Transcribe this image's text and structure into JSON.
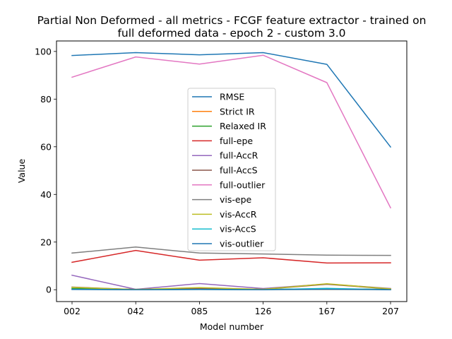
{
  "chart_data": {
    "type": "line",
    "title": "Partial Non Deformed - all metrics - FCGF feature extractor -  trained on full deformed data -  epoch 2 - custom 3.0",
    "title_lines": [
      "Partial Non Deformed - all metrics - FCGF feature extractor -  trained on",
      "full deformed data -  epoch 2 - custom 3.0"
    ],
    "xlabel": "Model number",
    "ylabel": "Value",
    "categories": [
      "002",
      "042",
      "085",
      "126",
      "167",
      "207"
    ],
    "ylim": [
      -4.97,
      104.4
    ],
    "yticks": [
      0,
      20,
      40,
      60,
      80,
      100
    ],
    "grid": false,
    "legend_position": "center",
    "series": [
      {
        "name": "RMSE",
        "color": "#1f77b4",
        "values": [
          98.3,
          99.5,
          98.6,
          99.5,
          94.6,
          59.9
        ]
      },
      {
        "name": "Strict IR",
        "color": "#ff7f0e",
        "values": [
          0.3,
          0.1,
          0.3,
          0.1,
          0.1,
          0.1
        ]
      },
      {
        "name": "Relaxed IR",
        "color": "#2ca02c",
        "values": [
          0.5,
          0.2,
          0.5,
          0.2,
          0.3,
          0.2
        ]
      },
      {
        "name": "full-epe",
        "color": "#d62728",
        "values": [
          11.5,
          16.5,
          12.4,
          13.4,
          11.2,
          11.3
        ]
      },
      {
        "name": "full-AccR",
        "color": "#9467bd",
        "values": [
          6.1,
          0.2,
          2.6,
          0.5,
          2.4,
          0.5
        ]
      },
      {
        "name": "full-AccS",
        "color": "#8c564b",
        "values": [
          1.1,
          0.1,
          0.6,
          0.2,
          2.3,
          0.3
        ]
      },
      {
        "name": "full-outlier",
        "color": "#e377c2",
        "values": [
          89.2,
          97.7,
          94.7,
          98.4,
          86.9,
          34.4
        ]
      },
      {
        "name": "vis-epe",
        "color": "#7f7f7f",
        "values": [
          15.4,
          17.9,
          15.4,
          15.0,
          14.5,
          14.4
        ]
      },
      {
        "name": "vis-AccR",
        "color": "#bcbd22",
        "values": [
          1.0,
          0.1,
          0.9,
          0.2,
          2.5,
          0.4
        ]
      },
      {
        "name": "vis-AccS",
        "color": "#17becf",
        "values": [
          0.2,
          0.0,
          0.1,
          0.0,
          0.6,
          0.0
        ]
      },
      {
        "name": "vis-outlier",
        "color": "#1f77b4",
        "values": [
          0.1,
          0.0,
          0.1,
          0.0,
          0.2,
          0.0
        ]
      }
    ]
  }
}
